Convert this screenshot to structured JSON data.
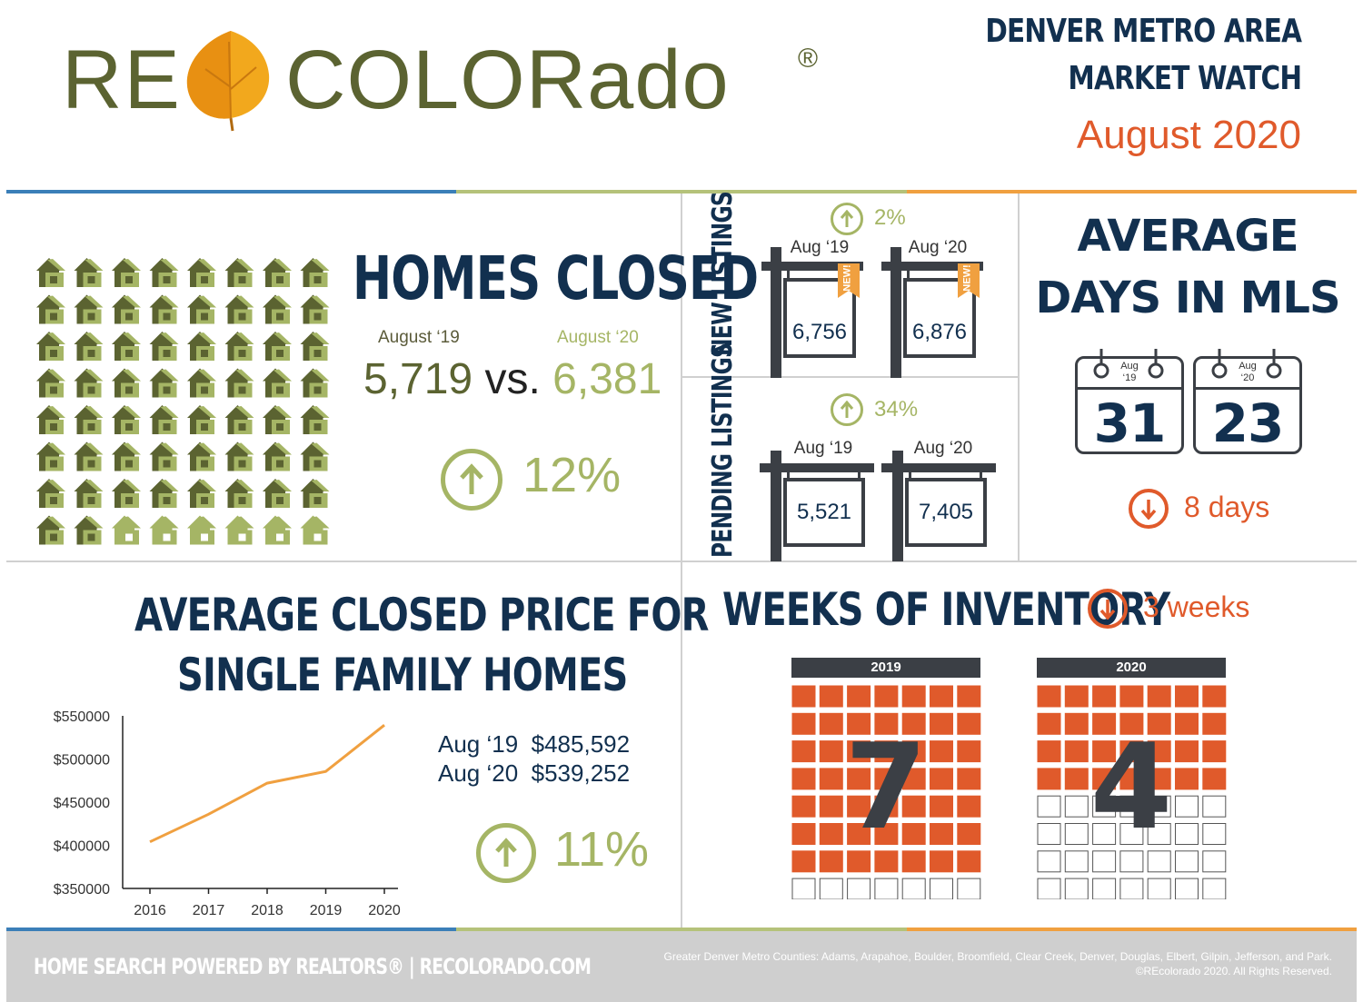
{
  "header": {
    "brand_re": "RE",
    "brand_colorado": "COLORado",
    "brand_mark": "®",
    "region": "DENVER METRO AREA",
    "report": "MARKET WATCH",
    "period": "August 2020"
  },
  "homes_closed": {
    "title": "HOMES CLOSED",
    "label_prev": "August ‘19",
    "label_curr": "August ‘20",
    "value_prev": "5,719",
    "vs": "vs.",
    "value_curr": "6,381",
    "change": "12%"
  },
  "new_listings": {
    "title": "NEW LISTINGS",
    "change": "2%",
    "label_prev": "Aug ‘19",
    "label_curr": "Aug ‘20",
    "value_prev": "6,756",
    "value_curr": "6,876",
    "tag": "NEW!"
  },
  "pending_listings": {
    "title": "PENDING LISTINGS",
    "change": "34%",
    "label_prev": "Aug ‘19",
    "label_curr": "Aug ‘20",
    "value_prev": "5,521",
    "value_curr": "7,405"
  },
  "days_in_mls": {
    "title_line1": "AVERAGE",
    "title_line2": "DAYS IN MLS",
    "cal_prev_month": "Aug",
    "cal_prev_year": "‘19",
    "cal_prev_value": "31",
    "cal_curr_month": "Aug",
    "cal_curr_year": "‘20",
    "cal_curr_value": "23",
    "change": "8 days"
  },
  "avg_price": {
    "title_line1": "AVERAGE CLOSED PRICE FOR",
    "title_line2": "SINGLE FAMILY HOMES",
    "line_prev": "Aug ‘19  $485,592",
    "line_curr": "Aug ‘20  $539,252",
    "change": "11%"
  },
  "inventory": {
    "title": "WEEKS OF INVENTORY",
    "change": "3 weeks",
    "grid_prev_label": "2019",
    "grid_curr_label": "2020",
    "weeks_prev": 7,
    "weeks_curr": 4,
    "weeks_prev_text": "7",
    "weeks_curr_text": "4"
  },
  "footer": {
    "tagline": "HOME SEARCH POWERED BY REALTORS® | RECOLORADO.COM",
    "counties": "Greater Denver Metro Counties: Adams, Arapahoe, Boulder, Broomfield, Clear Creek, Denver, Douglas, Elbert, Gilpin, Jefferson, and Park.",
    "copyright": "©REcolorado 2020. All Rights Reserved."
  },
  "colors": {
    "navy": "#12304f",
    "olive": "#5b6331",
    "light_green": "#a5b565",
    "orange": "#e05a2b",
    "line_orange": "#f0a040",
    "blue_stripe": "#3b7fb8"
  },
  "chart_data": {
    "type": "line",
    "title": "",
    "xlabel": "",
    "ylabel": "",
    "x": [
      "2016",
      "2017",
      "2018",
      "2019",
      "2020"
    ],
    "series": [
      {
        "values": [
          404000,
          436000,
          472000,
          485592,
          539252
        ]
      }
    ],
    "ylim": [
      350000,
      550000
    ],
    "yticks": [
      "$550000",
      "$500000",
      "$450000",
      "$400000",
      "$350000"
    ],
    "grid": false
  }
}
